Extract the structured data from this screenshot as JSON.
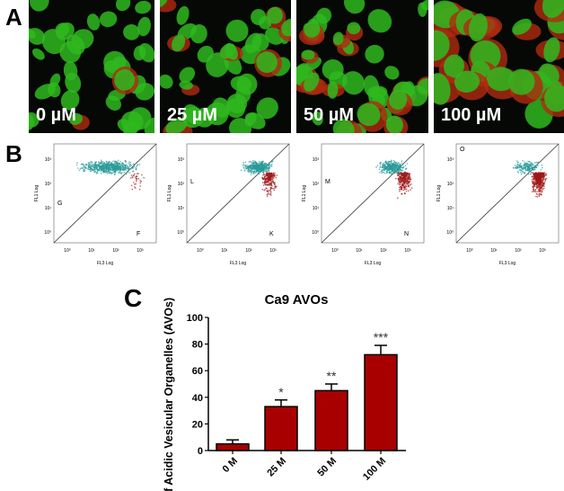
{
  "panels": {
    "a": "A",
    "b": "B",
    "c": "C"
  },
  "microscopy": [
    {
      "label": "0 µM",
      "red_level": 0.05
    },
    {
      "label": "25 µM",
      "red_level": 0.25
    },
    {
      "label": "50 µM",
      "red_level": 0.45
    },
    {
      "label": "100 µM",
      "red_level": 0.75
    }
  ],
  "flow": {
    "xlabel": "FL3 Log",
    "ylabel": "FL1 Log",
    "ticks": [
      "10⁰",
      "10¹",
      "10²",
      "10³"
    ],
    "plots": [
      {
        "upper_gate": "G",
        "lower_gate": "F",
        "red_fraction": 0.05
      },
      {
        "upper_gate": "L",
        "lower_gate": "K",
        "red_fraction": 0.35
      },
      {
        "upper_gate": "M",
        "lower_gate": "N",
        "red_fraction": 0.45
      },
      {
        "upper_gate": "O",
        "lower_gate": "",
        "red_fraction": 0.7
      }
    ],
    "colors": {
      "cyan": "#2a9a9a",
      "red": "#a01818"
    }
  },
  "chart_data": {
    "type": "bar",
    "title": "Ca9 AVOs",
    "xlabel": "",
    "ylabel": "% of Acidic Vesicular Organelles (AVOs)",
    "categories": [
      "0 M",
      "25 M",
      "50 M",
      "100 M"
    ],
    "values": [
      5,
      33,
      45,
      72
    ],
    "errors": [
      3,
      5,
      5,
      7
    ],
    "annotations": [
      "",
      "*",
      "**",
      "***"
    ],
    "ylim": [
      0,
      100
    ],
    "yticks": [
      0,
      20,
      40,
      60,
      80,
      100
    ],
    "bar_color": "#a80000",
    "grid": false
  }
}
